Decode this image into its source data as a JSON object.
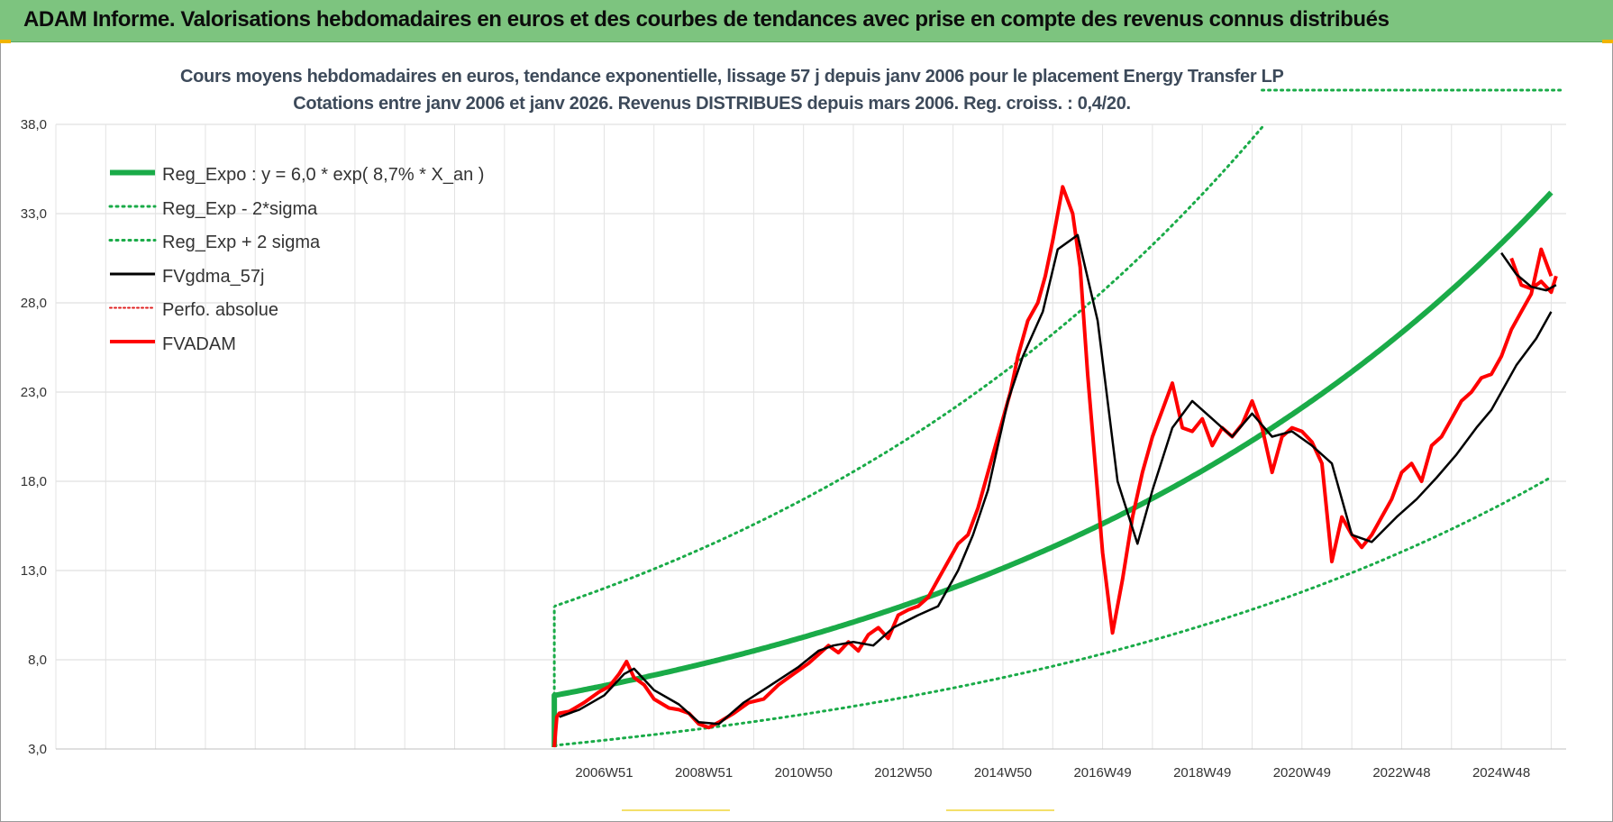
{
  "header": {
    "title": "ADAM Informe. Valorisations hebdomadaires en euros et des courbes de tendances avec prise en compte des revenus connus distribués"
  },
  "colors": {
    "header_bg": "#7dc47f",
    "reg_expo": "#1aab48",
    "fvgdma": "#000000",
    "fvadam": "#ff0000",
    "perfo": "#e02020"
  },
  "chart_data": {
    "type": "line",
    "title_lines": [
      "Cours moyens hebdomadaires en euros, tendance exponentielle, lissage 57 j depuis janv 2006  pour le placement Energy Transfer LP",
      "Cotations entre janv 2006 et janv 2026. Revenus DISTRIBUES depuis mars 2006.  Reg. croiss. : 0,4/20."
    ],
    "ylim": [
      3,
      38
    ],
    "yticks": [
      "3,0",
      "8,0",
      "13,0",
      "18,0",
      "23,0",
      "28,0",
      "33,0",
      "38,0"
    ],
    "ytick_values": [
      3,
      8,
      13,
      18,
      23,
      28,
      33,
      38
    ],
    "xlim": [
      1996,
      2026.3
    ],
    "xtick_labels": [
      "2006W51",
      "2008W51",
      "2010W50",
      "2012W50",
      "2014W50",
      "2016W49",
      "2018W49",
      "2020W49",
      "2022W48",
      "2024W48"
    ],
    "xtick_values": [
      2007,
      2009,
      2011,
      2013,
      2015,
      2017,
      2019,
      2021,
      2023,
      2025
    ],
    "grid": true,
    "legend_position": "top-left",
    "series": [
      {
        "name": "Reg_Expo : y = 6,0 * exp( 8,7% *  X_an )",
        "style": "solid-thick",
        "color": "#1aab48",
        "formula": {
          "a": 6.0,
          "k": 0.087,
          "x0": 2006.0,
          "x_end": 2026.0
        }
      },
      {
        "name": "Reg_Exp - 2*sigma",
        "style": "dotted",
        "color": "#1aab48",
        "formula": {
          "a": 3.2,
          "k": 0.087,
          "x0": 2006.0,
          "x_end": 2026.0
        }
      },
      {
        "name": "Reg_Exp + 2 sigma",
        "style": "dotted",
        "color": "#1aab48",
        "formula": {
          "a": 11.0,
          "k": 0.087,
          "x0": 2006.0,
          "x_end": 2026.0
        }
      },
      {
        "name": "FVgdma_57j",
        "style": "solid",
        "color": "#000000",
        "x": [
          2006.1,
          2006.5,
          2007.0,
          2007.4,
          2007.6,
          2008.0,
          2008.5,
          2008.9,
          2009.3,
          2009.8,
          2010.3,
          2010.9,
          2011.3,
          2011.6,
          2012.0,
          2012.4,
          2012.8,
          2013.3,
          2013.7,
          2014.1,
          2014.4,
          2014.7,
          2014.9,
          2015.1,
          2015.4,
          2015.8,
          2016.1,
          2016.5,
          2016.9,
          2017.3,
          2017.7,
          2018.0,
          2018.4,
          2018.8,
          2019.2,
          2019.6,
          2020.0,
          2020.4,
          2020.8,
          2021.2,
          2021.6,
          2022.0,
          2022.4,
          2022.9,
          2023.3,
          2023.7,
          2024.1,
          2024.5,
          2024.8,
          2025.0,
          2025.3,
          2025.7,
          2026.0
        ],
        "y": [
          4.8,
          5.2,
          6.0,
          7.2,
          7.5,
          6.3,
          5.5,
          4.5,
          4.4,
          5.6,
          6.5,
          7.6,
          8.5,
          8.8,
          9.0,
          8.8,
          9.8,
          10.5,
          11.0,
          13.0,
          15.0,
          17.5,
          20.0,
          22.5,
          25.0,
          27.5,
          31.0,
          31.8,
          27.0,
          18.0,
          14.5,
          17.5,
          21.0,
          22.5,
          21.5,
          20.5,
          21.8,
          20.5,
          20.8,
          20.0,
          19.0,
          15.0,
          14.6,
          16.0,
          17.0,
          18.2,
          19.5,
          21.0,
          22.0,
          23.0,
          24.5,
          26.0,
          27.5
        ],
        "x_extra": [
          2026.0,
          2026.1
        ],
        "y_extra": [
          31.0,
          30.5
        ]
      },
      {
        "name": "Perfo. absolue",
        "style": "dotted",
        "color": "#e02020"
      },
      {
        "name": "FVADAM",
        "style": "solid-thick",
        "color": "#ff0000",
        "x": [
          2006.0,
          2006.05,
          2006.1,
          2006.3,
          2006.6,
          2006.9,
          2007.1,
          2007.3,
          2007.45,
          2007.6,
          2007.8,
          2008.0,
          2008.3,
          2008.5,
          2008.7,
          2008.9,
          2009.1,
          2009.3,
          2009.6,
          2009.9,
          2010.2,
          2010.5,
          2010.8,
          2011.1,
          2011.3,
          2011.5,
          2011.7,
          2011.9,
          2012.1,
          2012.3,
          2012.5,
          2012.7,
          2012.9,
          2013.1,
          2013.3,
          2013.5,
          2013.7,
          2013.9,
          2014.1,
          2014.3,
          2014.5,
          2014.7,
          2014.85,
          2015.0,
          2015.15,
          2015.3,
          2015.5,
          2015.7,
          2015.85,
          2016.0,
          2016.2,
          2016.4,
          2016.55,
          2016.7,
          2016.85,
          2017.0,
          2017.2,
          2017.4,
          2017.6,
          2017.8,
          2018.0,
          2018.2,
          2018.4,
          2018.6,
          2018.8,
          2019.0,
          2019.2,
          2019.4,
          2019.6,
          2019.8,
          2020.0,
          2020.2,
          2020.4,
          2020.6,
          2020.8,
          2021.0,
          2021.2,
          2021.4,
          2021.6,
          2021.8,
          2022.0,
          2022.2,
          2022.4,
          2022.6,
          2022.8,
          2023.0,
          2023.2,
          2023.4,
          2023.6,
          2023.8,
          2024.0,
          2024.2,
          2024.4,
          2024.6,
          2024.8,
          2025.0,
          2025.2,
          2025.4,
          2025.6,
          2025.8,
          2026.0
        ],
        "y": [
          3.1,
          4.8,
          5.0,
          5.1,
          5.6,
          6.2,
          6.5,
          7.2,
          7.9,
          7.0,
          6.6,
          5.8,
          5.3,
          5.2,
          5.0,
          4.4,
          4.2,
          4.5,
          5.0,
          5.6,
          5.8,
          6.6,
          7.2,
          7.8,
          8.3,
          8.8,
          8.4,
          9.0,
          8.5,
          9.4,
          9.8,
          9.2,
          10.5,
          10.8,
          11.0,
          11.5,
          12.5,
          13.5,
          14.5,
          15.0,
          16.5,
          18.5,
          20.0,
          21.5,
          23.0,
          25.0,
          27.0,
          28.0,
          29.5,
          31.5,
          34.5,
          33.0,
          30.0,
          24.0,
          19.0,
          14.0,
          9.5,
          12.5,
          16.0,
          18.5,
          20.5,
          22.0,
          23.5,
          21.0,
          20.8,
          21.5,
          20.0,
          21.0,
          20.5,
          21.2,
          22.5,
          21.0,
          18.5,
          20.5,
          21.0,
          20.8,
          20.2,
          19.0,
          13.5,
          16.0,
          15.0,
          14.3,
          15.0,
          16.0,
          17.0,
          18.5,
          19.0,
          18.0,
          20.0,
          20.5,
          21.5,
          22.5,
          23.0,
          23.8,
          24.0,
          25.0,
          26.5,
          27.5,
          28.5,
          31.0,
          29.5
        ]
      }
    ]
  }
}
